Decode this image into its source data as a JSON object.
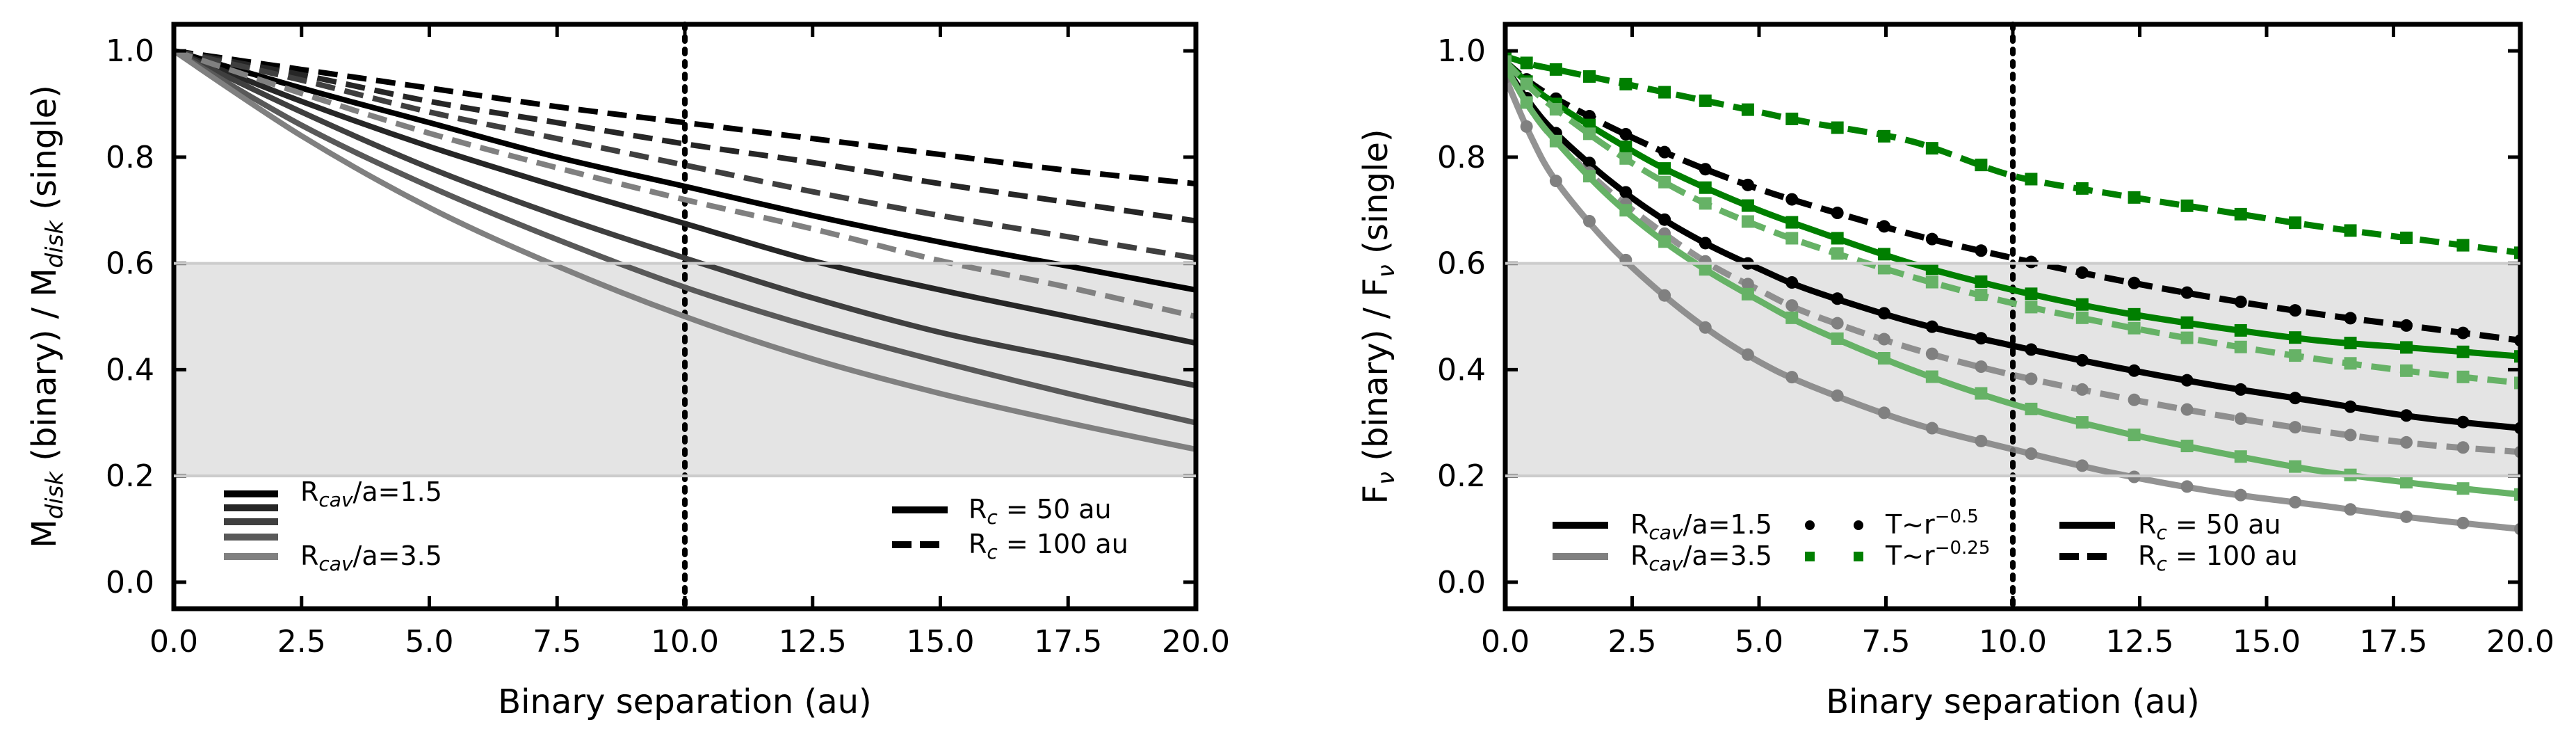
{
  "colors": {
    "black": "#000000",
    "dark": "#262626",
    "mid_dark": "#3f3f3f",
    "mid": "#595959",
    "light": "#808080",
    "green": "#007f00",
    "light_green": "#66b266",
    "band": "#e4e4e4"
  },
  "chart_data": [
    {
      "type": "line",
      "panel": "left",
      "title": "",
      "xlabel": "Binary separation (au)",
      "ylabel": "M_disk (binary) / M_disk (single)",
      "ylabel_parts": {
        "p1": "M",
        "sub1": "disk",
        "p2": " (binary) / M",
        "sub2": "disk",
        "p3": " (single)"
      },
      "xlim": [
        0,
        20
      ],
      "ylim": [
        -0.05,
        1.05
      ],
      "xticks": [
        0.0,
        2.5,
        5.0,
        7.5,
        10.0,
        12.5,
        15.0,
        17.5,
        20.0
      ],
      "xtick_labels": [
        "0.0",
        "2.5",
        "5.0",
        "7.5",
        "10.0",
        "12.5",
        "15.0",
        "17.5",
        "20.0"
      ],
      "yticks": [
        0.0,
        0.2,
        0.4,
        0.6,
        0.8,
        1.0
      ],
      "ytick_labels": [
        "0.0",
        "0.2",
        "0.4",
        "0.6",
        "0.8",
        "1.0"
      ],
      "shaded_band_y": [
        0.2,
        0.6
      ],
      "vline_x": 10,
      "series": [
        {
          "name": "R_cav/a=1.5, R_c=50 au",
          "style": "solid",
          "color": "#000000",
          "x": [
            0,
            2.5,
            5,
            7.5,
            10,
            12.5,
            15,
            17.5,
            20
          ],
          "values": [
            1.0,
            0.93,
            0.865,
            0.8,
            0.745,
            0.69,
            0.64,
            0.595,
            0.55
          ]
        },
        {
          "name": "R_cav/a=2.0, R_c=50 au",
          "style": "solid",
          "color": "#262626",
          "x": [
            0,
            2.5,
            5,
            7.5,
            10,
            12.5,
            15,
            17.5,
            20
          ],
          "values": [
            1.0,
            0.905,
            0.82,
            0.745,
            0.675,
            0.605,
            0.55,
            0.5,
            0.45
          ]
        },
        {
          "name": "R_cav/a=2.5, R_c=50 au",
          "style": "solid",
          "color": "#3f3f3f",
          "x": [
            0,
            2.5,
            5,
            7.5,
            10,
            12.5,
            15,
            17.5,
            20
          ],
          "values": [
            1.0,
            0.885,
            0.78,
            0.69,
            0.61,
            0.535,
            0.47,
            0.42,
            0.37
          ]
        },
        {
          "name": "R_cav/a=3.0, R_c=50 au",
          "style": "solid",
          "color": "#595959",
          "x": [
            0,
            2.5,
            5,
            7.5,
            10,
            12.5,
            15,
            17.5,
            20
          ],
          "values": [
            1.0,
            0.86,
            0.745,
            0.645,
            0.555,
            0.48,
            0.415,
            0.355,
            0.3
          ]
        },
        {
          "name": "R_cav/a=3.5, R_c=50 au",
          "style": "solid",
          "color": "#808080",
          "x": [
            0,
            2.5,
            5,
            7.5,
            10,
            12.5,
            15,
            17.5,
            20
          ],
          "values": [
            1.0,
            0.84,
            0.705,
            0.595,
            0.5,
            0.42,
            0.355,
            0.3,
            0.25
          ]
        },
        {
          "name": "R_cav/a=1.5, R_c=100 au",
          "style": "dashed",
          "color": "#000000",
          "x": [
            0,
            2.5,
            5,
            7.5,
            10,
            12.5,
            15,
            17.5,
            20
          ],
          "values": [
            1.0,
            0.965,
            0.93,
            0.895,
            0.865,
            0.835,
            0.805,
            0.775,
            0.75
          ]
        },
        {
          "name": "R_cav/a=2.0, R_c=100 au",
          "style": "dashed",
          "color": "#262626",
          "x": [
            0,
            2.5,
            5,
            7.5,
            10,
            12.5,
            15,
            17.5,
            20
          ],
          "values": [
            1.0,
            0.955,
            0.905,
            0.865,
            0.825,
            0.79,
            0.75,
            0.715,
            0.68
          ]
        },
        {
          "name": "R_cav/a=2.5, R_c=100 au",
          "style": "dashed",
          "color": "#3f3f3f",
          "x": [
            0,
            2.5,
            5,
            7.5,
            10,
            12.5,
            15,
            17.5,
            20
          ],
          "values": [
            1.0,
            0.945,
            0.885,
            0.835,
            0.785,
            0.735,
            0.69,
            0.65,
            0.61
          ]
        },
        {
          "name": "R_cav/a=3.5, R_c=100 au",
          "style": "dashed",
          "color": "#808080",
          "x": [
            0,
            2.5,
            5,
            7.5,
            10,
            12.5,
            15,
            17.5,
            20
          ],
          "values": [
            1.0,
            0.92,
            0.845,
            0.78,
            0.72,
            0.665,
            0.605,
            0.555,
            0.5
          ]
        }
      ],
      "legend_left": {
        "swatch_colors": [
          "#000000",
          "#262626",
          "#3f3f3f",
          "#595959",
          "#808080"
        ],
        "label_top": {
          "p1": "R",
          "sub": "cav",
          "p2": "/a=1.5"
        },
        "label_bottom": {
          "p1": "R",
          "sub": "cav",
          "p2": "/a=3.5"
        }
      },
      "legend_right": {
        "solid": {
          "p1": "R",
          "sub": "c",
          "p2": " = 50 au"
        },
        "dashed": {
          "p1": "R",
          "sub": "c",
          "p2": " = 100 au"
        }
      }
    },
    {
      "type": "line",
      "panel": "right",
      "title": "",
      "xlabel": "Binary separation (au)",
      "ylabel": "F_ν (binary) / F_ν (single)",
      "ylabel_parts": {
        "p1": "F",
        "sub1": "ν",
        "p2": " (binary) / F",
        "sub2": "ν",
        "p3": " (single)"
      },
      "xlim": [
        0,
        20
      ],
      "ylim": [
        -0.05,
        1.05
      ],
      "xticks": [
        0.0,
        2.5,
        5.0,
        7.5,
        10.0,
        12.5,
        15.0,
        17.5,
        20.0
      ],
      "xtick_labels": [
        "0.0",
        "2.5",
        "5.0",
        "7.5",
        "10.0",
        "12.5",
        "15.0",
        "17.5",
        "20.0"
      ],
      "yticks": [
        0.0,
        0.2,
        0.4,
        0.6,
        0.8,
        1.0
      ],
      "ytick_labels": [
        "0.0",
        "0.2",
        "0.4",
        "0.6",
        "0.8",
        "1.0"
      ],
      "shaded_band_y": [
        0.2,
        0.6
      ],
      "vline_x": 10,
      "series": [
        {
          "name": "R_cav/a=1.5, T~r^-0.5, R_c=50 au",
          "style": "solid",
          "marker": "circle",
          "color": "#000000",
          "x": [
            0,
            0.5,
            1,
            2,
            3,
            4,
            5,
            6,
            8,
            10,
            12,
            14,
            16,
            18,
            20
          ],
          "values": [
            0.97,
            0.9,
            0.845,
            0.76,
            0.69,
            0.635,
            0.59,
            0.55,
            0.49,
            0.445,
            0.405,
            0.37,
            0.34,
            0.31,
            0.29
          ]
        },
        {
          "name": "R_cav/a=3.5, T~r^-0.5, R_c=50 au",
          "style": "solid",
          "marker": "circle",
          "color": "#808080",
          "x": [
            0,
            0.5,
            1,
            2,
            3,
            4,
            5,
            6,
            8,
            10,
            12,
            14,
            16,
            18,
            20
          ],
          "values": [
            0.95,
            0.84,
            0.755,
            0.64,
            0.55,
            0.475,
            0.415,
            0.37,
            0.3,
            0.25,
            0.205,
            0.17,
            0.145,
            0.12,
            0.1
          ]
        },
        {
          "name": "R_cav/a=1.5, T~r^-0.5, R_c=100 au",
          "style": "dashed",
          "marker": "circle",
          "color": "#000000",
          "x": [
            0,
            0.5,
            1,
            2,
            3,
            4,
            5,
            6,
            8,
            10,
            12,
            14,
            16,
            18,
            20
          ],
          "values": [
            0.98,
            0.94,
            0.91,
            0.86,
            0.815,
            0.775,
            0.74,
            0.71,
            0.655,
            0.61,
            0.57,
            0.535,
            0.505,
            0.48,
            0.455
          ]
        },
        {
          "name": "R_cav/a=3.5, T~r^-0.5, R_c=100 au",
          "style": "dashed",
          "marker": "circle",
          "color": "#808080",
          "x": [
            0,
            0.5,
            1,
            2,
            3,
            4,
            5,
            6,
            8,
            10,
            12,
            14,
            16,
            18,
            20
          ],
          "values": [
            0.97,
            0.89,
            0.83,
            0.74,
            0.665,
            0.6,
            0.55,
            0.505,
            0.44,
            0.39,
            0.35,
            0.315,
            0.285,
            0.26,
            0.245
          ]
        },
        {
          "name": "R_cav/a=1.5, T~r^-0.25, R_c=50 au",
          "style": "solid",
          "marker": "square",
          "color": "#007f00",
          "x": [
            0,
            0.5,
            1,
            2,
            3,
            4,
            5,
            6,
            8,
            10,
            12,
            14,
            16,
            18,
            20
          ],
          "values": [
            0.98,
            0.935,
            0.9,
            0.84,
            0.785,
            0.74,
            0.7,
            0.665,
            0.6,
            0.55,
            0.51,
            0.48,
            0.455,
            0.44,
            0.425
          ]
        },
        {
          "name": "R_cav/a=3.5, T~r^-0.25, R_c=50 au",
          "style": "solid",
          "marker": "square",
          "color": "#66b266",
          "x": [
            0,
            0.5,
            1,
            2,
            3,
            4,
            5,
            6,
            8,
            10,
            12,
            14,
            16,
            18,
            20
          ],
          "values": [
            0.97,
            0.89,
            0.83,
            0.73,
            0.65,
            0.585,
            0.53,
            0.48,
            0.4,
            0.335,
            0.285,
            0.245,
            0.21,
            0.185,
            0.165
          ]
        },
        {
          "name": "R_cav/a=1.5, T~r^-0.25, R_c=100 au",
          "style": "dashed",
          "marker": "square",
          "color": "#007f00",
          "x": [
            0,
            0.5,
            1,
            2,
            3,
            4,
            5,
            6,
            8,
            10,
            12,
            14,
            16,
            18,
            20
          ],
          "values": [
            0.99,
            0.975,
            0.965,
            0.945,
            0.925,
            0.905,
            0.885,
            0.865,
            0.83,
            0.765,
            0.73,
            0.7,
            0.67,
            0.645,
            0.62
          ]
        },
        {
          "name": "R_cav/a=3.5, T~r^-0.25, R_c=100 au",
          "style": "dashed",
          "marker": "square",
          "color": "#66b266",
          "x": [
            0,
            0.5,
            1,
            2,
            3,
            4,
            5,
            6,
            8,
            10,
            12,
            14,
            16,
            18,
            20
          ],
          "values": [
            0.98,
            0.93,
            0.89,
            0.82,
            0.76,
            0.71,
            0.67,
            0.635,
            0.575,
            0.525,
            0.485,
            0.45,
            0.42,
            0.395,
            0.375
          ]
        }
      ],
      "legend": {
        "rcav_1_5": {
          "p1": "R",
          "sub": "cav",
          "p2": "/a=1.5"
        },
        "rcav_3_5": {
          "p1": "R",
          "sub": "cav",
          "p2": "/a=3.5"
        },
        "temp_0_5": {
          "p1": "T~r",
          "sup": "−0.5"
        },
        "temp_0_25": {
          "p1": "T~r",
          "sup": "−0.25"
        },
        "rc_50": {
          "p1": "R",
          "sub": "c",
          "p2": " = 50 au"
        },
        "rc_100": {
          "p1": "R",
          "sub": "c",
          "p2": " = 100 au"
        }
      }
    }
  ]
}
